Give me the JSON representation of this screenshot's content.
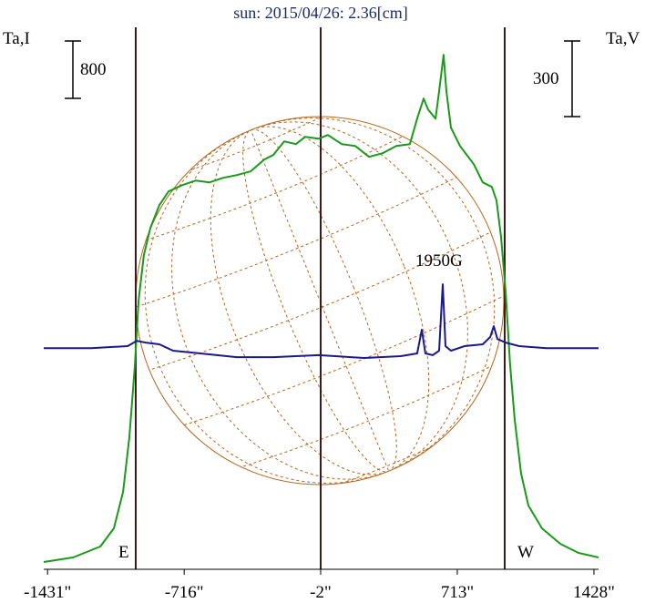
{
  "chart_data": {
    "type": "line",
    "title": "sun: 2015/04/26: 2.36[cm]",
    "y_label": "Ta,I",
    "y2_label": "Ta,V",
    "annotations": [
      "1950G",
      "E",
      "W"
    ],
    "xlim": [
      -1451,
      1452
    ],
    "xticks": [
      {
        "value": -1431,
        "label": "-1431\""
      },
      {
        "value": -716,
        "label": "-716\""
      },
      {
        "value": -2,
        "label": "-2\""
      },
      {
        "value": 713,
        "label": "713\""
      },
      {
        "value": 1428,
        "label": "1428\""
      }
    ],
    "ylim": [
      0,
      7560
    ],
    "y2lim": [
      -881,
      1268
    ],
    "scale_bars": [
      {
        "value": 800,
        "label": "800",
        "axis": "y"
      },
      {
        "value": 300,
        "label": "300",
        "axis": "y2"
      }
    ],
    "series": [
      {
        "color": "#1a9a1a",
        "axis": "y",
        "x": [
          -1451,
          -1298,
          -1155,
          -1084,
          -1036,
          -1003,
          -974,
          -955,
          -927,
          -893,
          -846,
          -798,
          -726,
          -655,
          -583,
          -512,
          -440,
          -369,
          -298,
          -250,
          -193,
          -131,
          -83,
          -12,
          36,
          108,
          179,
          251,
          322,
          394,
          465,
          503,
          537,
          560,
          599,
          618,
          641,
          656,
          680,
          727,
          799,
          846,
          894,
          918,
          942,
          966,
          989,
          1013,
          1047,
          1085,
          1156,
          1252,
          1347,
          1452
        ],
        "values": [
          102,
          165,
          318,
          572,
          1080,
          1842,
          2858,
          3747,
          4382,
          4763,
          5080,
          5271,
          5359,
          5423,
          5398,
          5461,
          5499,
          5550,
          5715,
          5779,
          5969,
          5931,
          6033,
          6007,
          6058,
          5931,
          5906,
          5753,
          5804,
          5906,
          5931,
          6287,
          6566,
          6414,
          6287,
          6668,
          7176,
          6668,
          6160,
          5906,
          5652,
          5398,
          5334,
          5144,
          4636,
          3874,
          2858,
          2096,
          1334,
          889,
          572,
          356,
          229,
          165
        ]
      },
      {
        "color": "#1a1a8a",
        "axis": "y2",
        "x": [
          -1451,
          -1203,
          -1012,
          -965,
          -917,
          -846,
          -774,
          -631,
          -440,
          -250,
          -12,
          227,
          417,
          503,
          527,
          546,
          584,
          618,
          637,
          651,
          680,
          751,
          846,
          885,
          904,
          923,
          966,
          1037,
          1180,
          1452
        ],
        "values": [
          -4,
          -4,
          4,
          25,
          18,
          11,
          -14,
          -25,
          -40,
          -40,
          -32,
          -43,
          -36,
          -25,
          69,
          -25,
          -32,
          -14,
          249,
          4,
          -14,
          4,
          11,
          40,
          83,
          32,
          18,
          4,
          -4,
          -4
        ]
      }
    ]
  }
}
